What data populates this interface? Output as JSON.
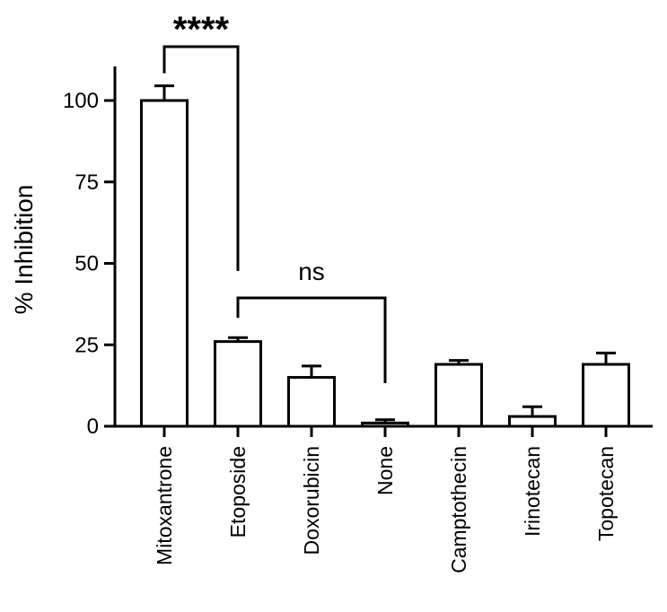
{
  "chart_data": {
    "type": "bar",
    "title": "",
    "xlabel": "",
    "ylabel": "% Inhibition",
    "ylim": [
      0,
      110
    ],
    "yticks": [
      0,
      25,
      50,
      75,
      100
    ],
    "grid": false,
    "categories": [
      "Mitoxantrone",
      "Etoposide",
      "Doxorubicin",
      "None",
      "Camptothecin",
      "Irinotecan",
      "Topotecan"
    ],
    "values": [
      100,
      26,
      15,
      1,
      19,
      3,
      19
    ],
    "errors": [
      4.5,
      1.2,
      3.5,
      1.0,
      1.2,
      3.0,
      3.5
    ],
    "annotations": [
      {
        "type": "bracket",
        "from": "Mitoxantrone",
        "to": "Etoposide",
        "label": "****"
      },
      {
        "type": "bracket",
        "from": "Etoposide",
        "to": "None",
        "label": "ns"
      }
    ]
  }
}
